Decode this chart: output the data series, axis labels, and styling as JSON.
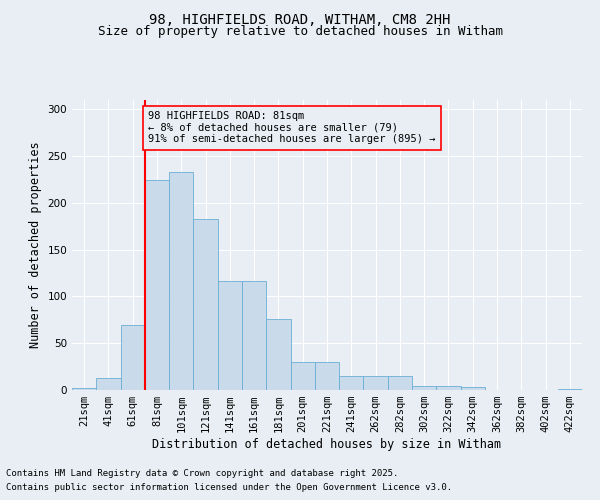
{
  "title_line1": "98, HIGHFIELDS ROAD, WITHAM, CM8 2HH",
  "title_line2": "Size of property relative to detached houses in Witham",
  "xlabel": "Distribution of detached houses by size in Witham",
  "ylabel": "Number of detached properties",
  "footnote1": "Contains HM Land Registry data © Crown copyright and database right 2025.",
  "footnote2": "Contains public sector information licensed under the Open Government Licence v3.0.",
  "annotation_line1": "98 HIGHFIELDS ROAD: 81sqm",
  "annotation_line2": "← 8% of detached houses are smaller (79)",
  "annotation_line3": "91% of semi-detached houses are larger (895) →",
  "bar_color": "#c9daea",
  "bar_edge_color": "#6baed6",
  "categories": [
    "21sqm",
    "41sqm",
    "61sqm",
    "81sqm",
    "101sqm",
    "121sqm",
    "141sqm",
    "161sqm",
    "181sqm",
    "201sqm",
    "221sqm",
    "241sqm",
    "262sqm",
    "282sqm",
    "302sqm",
    "322sqm",
    "342sqm",
    "362sqm",
    "382sqm",
    "402sqm",
    "422sqm"
  ],
  "values": [
    2,
    13,
    70,
    225,
    233,
    183,
    117,
    117,
    76,
    30,
    30,
    15,
    15,
    15,
    4,
    4,
    3,
    0,
    0,
    0,
    1
  ],
  "red_line_index": 3,
  "ylim": [
    0,
    310
  ],
  "yticks": [
    0,
    50,
    100,
    150,
    200,
    250,
    300
  ],
  "background_color": "#e8eef4",
  "grid_color": "#ffffff",
  "title_fontsize": 10,
  "subtitle_fontsize": 9,
  "axis_label_fontsize": 8.5,
  "tick_fontsize": 7.5,
  "annotation_fontsize": 7.5,
  "footnote_fontsize": 6.5
}
